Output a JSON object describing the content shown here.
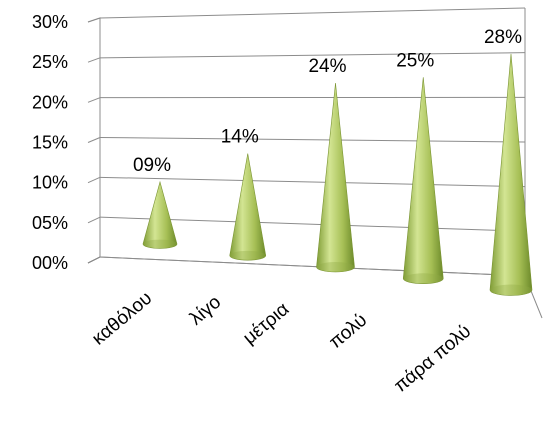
{
  "chart_data": {
    "type": "bar",
    "subtype": "3d-cone",
    "categories": [
      "καθόλου",
      "λίγο",
      "μέτρια",
      "πολύ",
      "πάρα πολύ"
    ],
    "values": [
      9,
      14,
      24,
      25,
      28
    ],
    "data_labels": [
      "09%",
      "14%",
      "24%",
      "25%",
      "28%"
    ],
    "y_ticks": [
      "00%",
      "05%",
      "10%",
      "15%",
      "20%",
      "25%",
      "30%"
    ],
    "ylim": [
      0,
      30
    ],
    "grid": true,
    "legend": "none",
    "title": "",
    "xlabel": "",
    "ylabel": "",
    "colors": {
      "cone_light": "#dce9a2",
      "cone_mid": "#a9c25a",
      "cone_dark": "#6c8a2a",
      "grid": "#8c8c8c"
    }
  }
}
